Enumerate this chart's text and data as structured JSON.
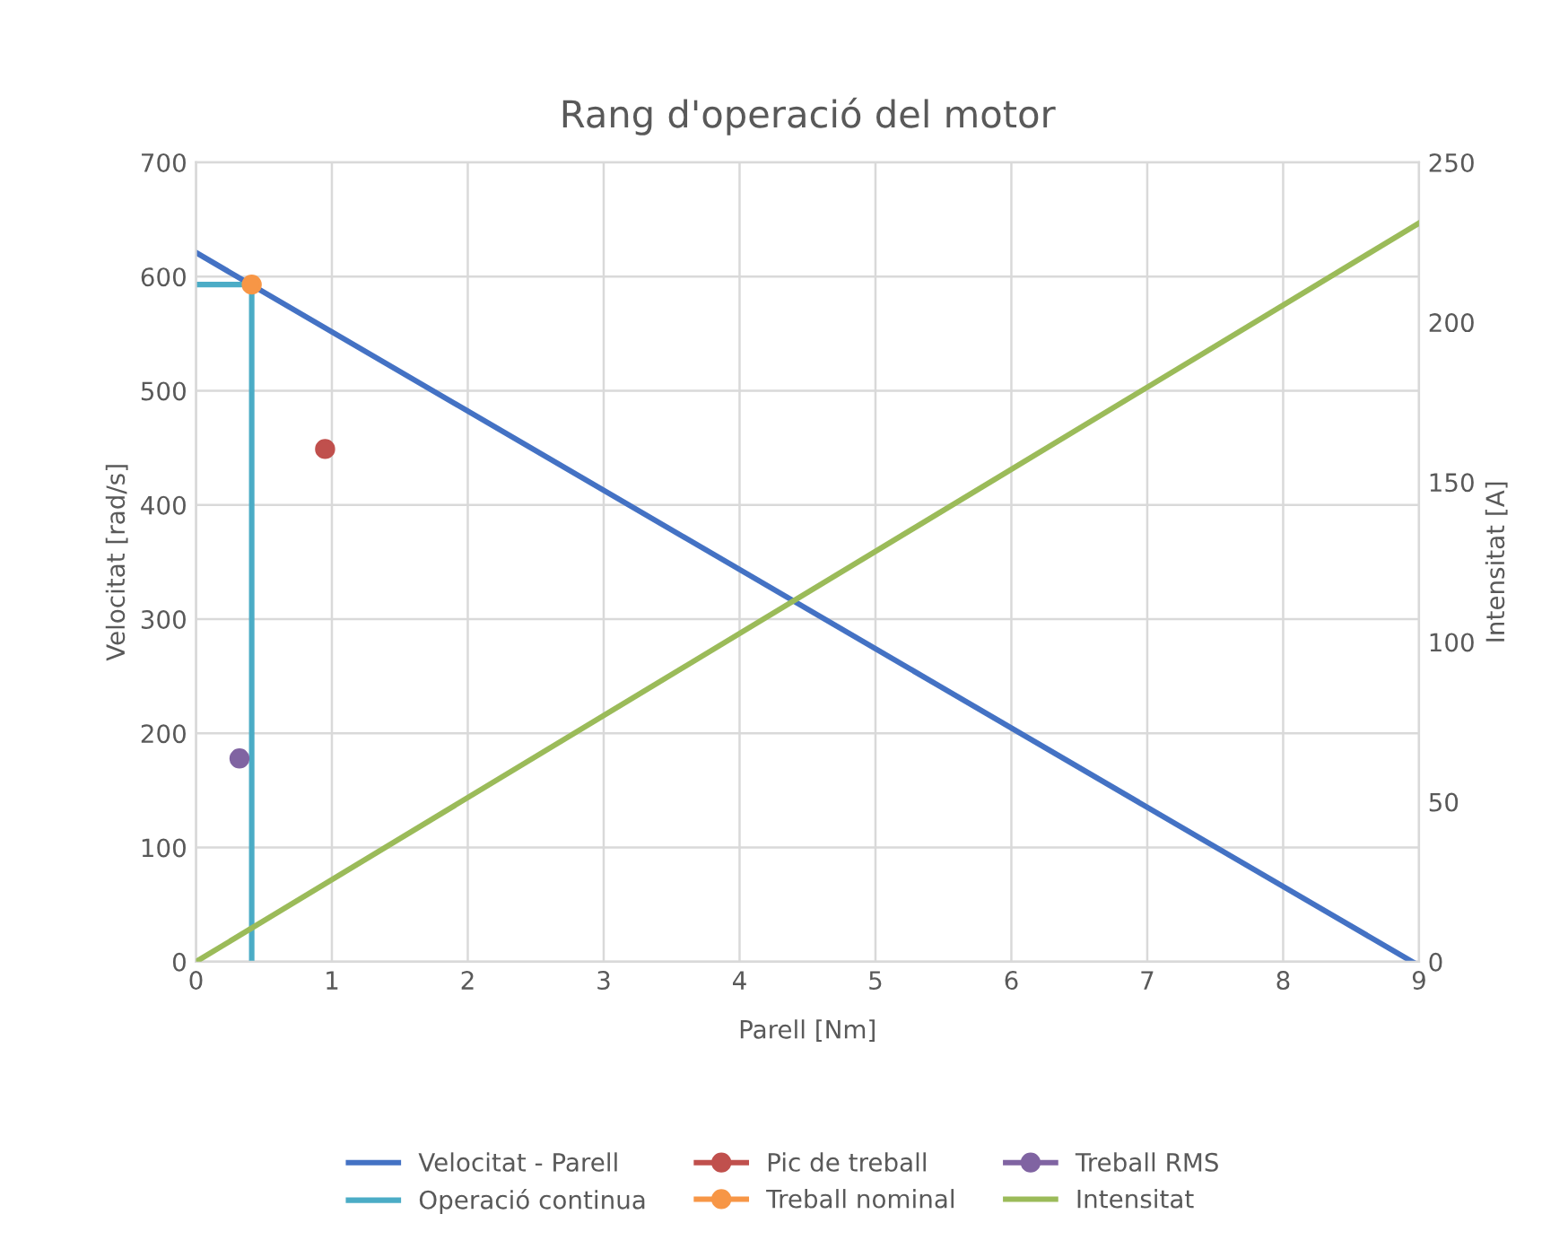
{
  "chart_data": {
    "type": "line",
    "title": "Rang d'operació del motor",
    "xlabel": "Parell [Nm]",
    "ylabel": "Velocitat [rad/s]",
    "y2label": "Intensitat [A]",
    "xlim": [
      0,
      9
    ],
    "xticks": [
      0,
      1,
      2,
      3,
      4,
      5,
      6,
      7,
      8,
      9
    ],
    "ylim": [
      0,
      700
    ],
    "yticks": [
      0,
      100,
      200,
      300,
      400,
      500,
      600,
      700
    ],
    "y2lim": [
      0,
      250
    ],
    "y2ticks": [
      0,
      50,
      100,
      150,
      200,
      250
    ],
    "grid": true,
    "legend": "bottom",
    "marker": "none",
    "line_style": "solid",
    "series": [
      {
        "name": "Velocitat - Parell",
        "color": "#4472c4",
        "x": [
          0,
          8.95
        ],
        "values": [
          621,
          0
        ]
      },
      {
        "name": "Pic de treball",
        "type": "scatter",
        "marker": "circle",
        "color": "#c0504d",
        "x": [
          0.95
        ],
        "values": [
          449
        ]
      },
      {
        "name": "Treball RMS",
        "type": "scatter",
        "marker": "circle",
        "color": "#8064a2",
        "x": [
          0.32
        ],
        "values": [
          178
        ]
      },
      {
        "name": "Operació continua",
        "color": "#4bacc6",
        "x": [
          0,
          0.41,
          0.41
        ],
        "values": [
          593,
          593,
          0
        ]
      },
      {
        "name": "Treball nominal",
        "type": "scatter",
        "marker": "circle",
        "color": "#f79646",
        "x": [
          0.41
        ],
        "values": [
          593
        ]
      },
      {
        "name": "Intensitat",
        "axis": "y2",
        "color": "#9bbb59",
        "x": [
          0,
          9
        ],
        "values": [
          0,
          231
        ]
      }
    ]
  }
}
